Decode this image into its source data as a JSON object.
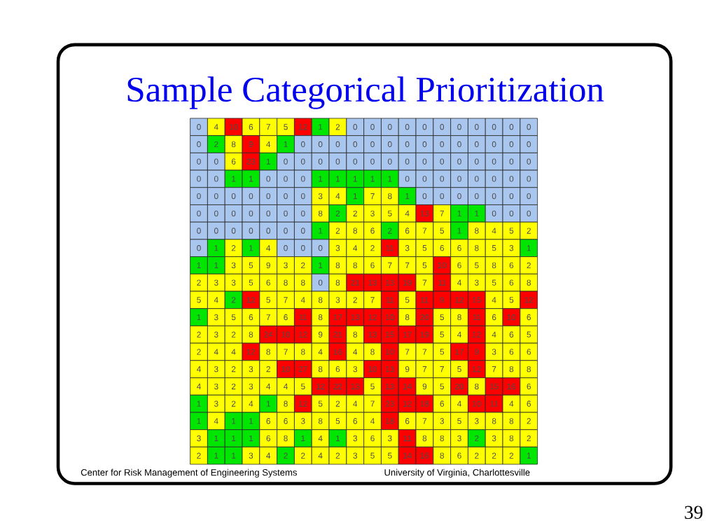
{
  "chart_data": {
    "type": "heatmap",
    "title": "Sample Categorical Prioritization",
    "categories": [
      null,
      null,
      null,
      null,
      null,
      null,
      null,
      null,
      null,
      null,
      null,
      null,
      null,
      null,
      null,
      null,
      null,
      null,
      null,
      null
    ],
    "y_categories": [
      null,
      null,
      null,
      null,
      null,
      null,
      null,
      null,
      null,
      null,
      null,
      null,
      null,
      null,
      null,
      null,
      null,
      null,
      null,
      null
    ],
    "cells": [
      [
        0,
        4,
        10,
        6,
        7,
        5,
        12,
        1,
        2,
        0,
        0,
        0,
        0,
        0,
        0,
        0,
        0,
        0,
        0,
        0
      ],
      [
        0,
        2,
        8,
        9,
        4,
        1,
        0,
        0,
        0,
        0,
        0,
        0,
        0,
        0,
        0,
        0,
        0,
        0,
        0,
        0
      ],
      [
        0,
        0,
        6,
        23,
        1,
        0,
        0,
        0,
        0,
        0,
        0,
        0,
        0,
        0,
        0,
        0,
        0,
        0,
        0,
        0
      ],
      [
        0,
        0,
        1,
        1,
        0,
        0,
        0,
        1,
        1,
        1,
        1,
        1,
        0,
        0,
        0,
        0,
        0,
        0,
        0,
        0
      ],
      [
        0,
        0,
        0,
        0,
        0,
        0,
        0,
        3,
        4,
        1,
        7,
        8,
        1,
        0,
        0,
        0,
        0,
        0,
        0,
        0
      ],
      [
        0,
        0,
        0,
        0,
        0,
        0,
        0,
        8,
        2,
        2,
        3,
        5,
        4,
        13,
        7,
        1,
        1,
        0,
        0,
        0
      ],
      [
        0,
        0,
        0,
        0,
        0,
        0,
        0,
        1,
        2,
        8,
        6,
        2,
        6,
        7,
        5,
        1,
        8,
        4,
        5,
        2
      ],
      [
        0,
        1,
        2,
        1,
        4,
        0,
        0,
        0,
        3,
        4,
        2,
        11,
        3,
        5,
        6,
        6,
        8,
        5,
        3,
        1
      ],
      [
        1,
        1,
        3,
        5,
        9,
        3,
        2,
        1,
        8,
        8,
        6,
        7,
        7,
        5,
        10,
        6,
        5,
        8,
        6,
        2
      ],
      [
        2,
        3,
        3,
        5,
        6,
        8,
        8,
        0,
        8,
        21,
        13,
        13,
        19,
        7,
        11,
        4,
        3,
        5,
        6,
        8
      ],
      [
        5,
        4,
        2,
        12,
        5,
        7,
        4,
        8,
        3,
        2,
        7,
        11,
        5,
        11,
        9,
        12,
        15,
        4,
        5,
        12
      ],
      [
        1,
        3,
        5,
        6,
        7,
        6,
        11,
        8,
        17,
        13,
        12,
        10,
        8,
        20,
        5,
        8,
        11,
        6,
        10,
        6
      ],
      [
        2,
        3,
        2,
        8,
        24,
        10,
        12,
        9,
        21,
        8,
        13,
        15,
        17,
        19,
        5,
        4,
        12,
        4,
        6,
        5
      ],
      [
        2,
        4,
        4,
        12,
        8,
        7,
        8,
        4,
        16,
        4,
        8,
        10,
        7,
        7,
        5,
        17,
        9,
        3,
        6,
        6
      ],
      [
        4,
        3,
        2,
        3,
        2,
        10,
        27,
        8,
        6,
        3,
        10,
        13,
        9,
        7,
        7,
        5,
        12,
        7,
        8,
        8
      ],
      [
        4,
        3,
        2,
        3,
        4,
        4,
        5,
        12,
        22,
        13,
        5,
        13,
        14,
        9,
        5,
        20,
        8,
        15,
        16,
        6
      ],
      [
        1,
        3,
        2,
        4,
        1,
        8,
        12,
        5,
        2,
        4,
        7,
        23,
        12,
        18,
        6,
        4,
        10,
        11,
        4,
        6
      ],
      [
        1,
        4,
        1,
        1,
        6,
        6,
        3,
        8,
        5,
        6,
        4,
        18,
        6,
        7,
        3,
        5,
        3,
        8,
        8,
        2
      ],
      [
        3,
        1,
        1,
        1,
        6,
        8,
        1,
        4,
        1,
        3,
        6,
        3,
        11,
        8,
        8,
        3,
        2,
        3,
        8,
        2
      ],
      [
        2,
        1,
        1,
        3,
        4,
        2,
        2,
        4,
        2,
        3,
        5,
        5,
        14,
        16,
        8,
        6,
        2,
        2,
        2,
        1
      ]
    ],
    "colors": [
      [
        "#a9c6ee",
        "#ffff00",
        "#ff0000",
        "#ffff00",
        "#ffff00",
        "#ffff00",
        "#ff0000",
        "#00e600",
        "#ffff00",
        "#a9c6ee",
        "#a9c6ee",
        "#a9c6ee",
        "#a9c6ee",
        "#a9c6ee",
        "#a9c6ee",
        "#a9c6ee",
        "#a9c6ee",
        "#a9c6ee",
        "#a9c6ee",
        "#a9c6ee"
      ],
      [
        "#a9c6ee",
        "#00e600",
        "#ffff00",
        "#ff0000",
        "#ffff00",
        "#00e600",
        "#a9c6ee",
        "#a9c6ee",
        "#a9c6ee",
        "#a9c6ee",
        "#a9c6ee",
        "#a9c6ee",
        "#a9c6ee",
        "#a9c6ee",
        "#a9c6ee",
        "#a9c6ee",
        "#a9c6ee",
        "#a9c6ee",
        "#a9c6ee",
        "#a9c6ee"
      ],
      [
        "#a9c6ee",
        "#a9c6ee",
        "#ffff00",
        "#ff0000",
        "#00e600",
        "#a9c6ee",
        "#a9c6ee",
        "#a9c6ee",
        "#a9c6ee",
        "#a9c6ee",
        "#a9c6ee",
        "#a9c6ee",
        "#a9c6ee",
        "#a9c6ee",
        "#a9c6ee",
        "#a9c6ee",
        "#a9c6ee",
        "#a9c6ee",
        "#a9c6ee",
        "#a9c6ee"
      ],
      [
        "#a9c6ee",
        "#a9c6ee",
        "#00e600",
        "#00e600",
        "#a9c6ee",
        "#a9c6ee",
        "#a9c6ee",
        "#00e600",
        "#00e600",
        "#00e600",
        "#00e600",
        "#00e600",
        "#a9c6ee",
        "#a9c6ee",
        "#a9c6ee",
        "#a9c6ee",
        "#a9c6ee",
        "#a9c6ee",
        "#a9c6ee",
        "#a9c6ee"
      ],
      [
        "#a9c6ee",
        "#a9c6ee",
        "#a9c6ee",
        "#a9c6ee",
        "#a9c6ee",
        "#a9c6ee",
        "#a9c6ee",
        "#ffff00",
        "#ffff00",
        "#00e600",
        "#ffff00",
        "#ffff00",
        "#00e600",
        "#a9c6ee",
        "#a9c6ee",
        "#a9c6ee",
        "#a9c6ee",
        "#a9c6ee",
        "#a9c6ee",
        "#a9c6ee"
      ],
      [
        "#a9c6ee",
        "#a9c6ee",
        "#a9c6ee",
        "#a9c6ee",
        "#a9c6ee",
        "#a9c6ee",
        "#a9c6ee",
        "#ffff00",
        "#00e600",
        "#ffff00",
        "#ffff00",
        "#ffff00",
        "#ffff00",
        "#ff0000",
        "#ffff00",
        "#00e600",
        "#00e600",
        "#a9c6ee",
        "#a9c6ee",
        "#a9c6ee"
      ],
      [
        "#a9c6ee",
        "#a9c6ee",
        "#a9c6ee",
        "#a9c6ee",
        "#a9c6ee",
        "#a9c6ee",
        "#a9c6ee",
        "#00e600",
        "#ffff00",
        "#ffff00",
        "#ffff00",
        "#00e600",
        "#ffff00",
        "#ffff00",
        "#ffff00",
        "#00e600",
        "#ffff00",
        "#ffff00",
        "#ffff00",
        "#ffff00"
      ],
      [
        "#a9c6ee",
        "#00e600",
        "#ffff00",
        "#00e600",
        "#ffff00",
        "#a9c6ee",
        "#a9c6ee",
        "#a9c6ee",
        "#ffff00",
        "#ffff00",
        "#ffff00",
        "#ff0000",
        "#ffff00",
        "#ffff00",
        "#ffff00",
        "#ffff00",
        "#ffff00",
        "#ffff00",
        "#ffff00",
        "#00e600"
      ],
      [
        "#00e600",
        "#00e600",
        "#ffff00",
        "#ffff00",
        "#ffff00",
        "#ffff00",
        "#ffff00",
        "#00e600",
        "#ffff00",
        "#ffff00",
        "#ffff00",
        "#ffff00",
        "#ffff00",
        "#ffff00",
        "#ff0000",
        "#ffff00",
        "#ffff00",
        "#ffff00",
        "#ffff00",
        "#ffff00"
      ],
      [
        "#ffff00",
        "#ffff00",
        "#ffff00",
        "#ffff00",
        "#ffff00",
        "#ffff00",
        "#ffff00",
        "#a9c6ee",
        "#ffff00",
        "#ff0000",
        "#ff0000",
        "#ff0000",
        "#ff0000",
        "#ffff00",
        "#ff0000",
        "#ffff00",
        "#ffff00",
        "#ffff00",
        "#ffff00",
        "#ffff00"
      ],
      [
        "#ffff00",
        "#ffff00",
        "#00e600",
        "#ff0000",
        "#ffff00",
        "#ffff00",
        "#ffff00",
        "#ffff00",
        "#ffff00",
        "#ffff00",
        "#ffff00",
        "#ff0000",
        "#ffff00",
        "#ff0000",
        "#ff0000",
        "#ff0000",
        "#ff0000",
        "#ffff00",
        "#ffff00",
        "#ff0000"
      ],
      [
        "#00e600",
        "#ffff00",
        "#ffff00",
        "#ffff00",
        "#ffff00",
        "#ffff00",
        "#ff0000",
        "#ffff00",
        "#ff0000",
        "#ff0000",
        "#ff0000",
        "#ff0000",
        "#ffff00",
        "#ff0000",
        "#ffff00",
        "#ffff00",
        "#ff0000",
        "#ffff00",
        "#ff0000",
        "#ffff00"
      ],
      [
        "#ffff00",
        "#ffff00",
        "#ffff00",
        "#ffff00",
        "#ff0000",
        "#ff0000",
        "#ff0000",
        "#ffff00",
        "#ff0000",
        "#ffff00",
        "#ff0000",
        "#ff0000",
        "#ff0000",
        "#ff0000",
        "#ffff00",
        "#ffff00",
        "#ff0000",
        "#ffff00",
        "#ffff00",
        "#ffff00"
      ],
      [
        "#ffff00",
        "#ffff00",
        "#ffff00",
        "#ff0000",
        "#ffff00",
        "#ffff00",
        "#ffff00",
        "#ffff00",
        "#ff0000",
        "#ffff00",
        "#ffff00",
        "#ff0000",
        "#ffff00",
        "#ffff00",
        "#ffff00",
        "#ff0000",
        "#ff0000",
        "#ffff00",
        "#ffff00",
        "#ffff00"
      ],
      [
        "#ffff00",
        "#ffff00",
        "#ffff00",
        "#ffff00",
        "#ffff00",
        "#ff0000",
        "#ff0000",
        "#ffff00",
        "#ffff00",
        "#ffff00",
        "#ff0000",
        "#ff0000",
        "#ffff00",
        "#ffff00",
        "#ffff00",
        "#ffff00",
        "#ff0000",
        "#ffff00",
        "#ffff00",
        "#ffff00"
      ],
      [
        "#ffff00",
        "#ffff00",
        "#ffff00",
        "#ffff00",
        "#ffff00",
        "#ffff00",
        "#ffff00",
        "#ff0000",
        "#ff0000",
        "#ff0000",
        "#ffff00",
        "#ff0000",
        "#ff0000",
        "#ffff00",
        "#ffff00",
        "#ff0000",
        "#ffff00",
        "#ff0000",
        "#ff0000",
        "#ffff00"
      ],
      [
        "#00e600",
        "#ffff00",
        "#ffff00",
        "#ffff00",
        "#00e600",
        "#ffff00",
        "#ff0000",
        "#ffff00",
        "#ffff00",
        "#ffff00",
        "#ffff00",
        "#ff0000",
        "#ff0000",
        "#ff0000",
        "#ffff00",
        "#ffff00",
        "#ff0000",
        "#ff0000",
        "#ffff00",
        "#ffff00"
      ],
      [
        "#00e600",
        "#ffff00",
        "#00e600",
        "#00e600",
        "#ffff00",
        "#ffff00",
        "#ffff00",
        "#ffff00",
        "#ffff00",
        "#ffff00",
        "#ffff00",
        "#ff0000",
        "#ffff00",
        "#ffff00",
        "#ffff00",
        "#ffff00",
        "#ffff00",
        "#ffff00",
        "#ffff00",
        "#ffff00"
      ],
      [
        "#ffff00",
        "#00e600",
        "#00e600",
        "#00e600",
        "#ffff00",
        "#ffff00",
        "#00e600",
        "#ffff00",
        "#00e600",
        "#ffff00",
        "#ffff00",
        "#ffff00",
        "#ff0000",
        "#ffff00",
        "#ffff00",
        "#ffff00",
        "#00e600",
        "#ffff00",
        "#ffff00",
        "#ffff00"
      ],
      [
        "#ffff00",
        "#00e600",
        "#00e600",
        "#ffff00",
        "#ffff00",
        "#00e600",
        "#ffff00",
        "#ffff00",
        "#ffff00",
        "#ffff00",
        "#ffff00",
        "#ffff00",
        "#ff0000",
        "#ff0000",
        "#ffff00",
        "#ffff00",
        "#ffff00",
        "#ffff00",
        "#ffff00",
        "#00e600"
      ]
    ],
    "data_labels": true,
    "annotations": [
      "Center for Risk Management of Engineering Systems",
      "University of Virginia, Charlottesville",
      "39"
    ]
  }
}
